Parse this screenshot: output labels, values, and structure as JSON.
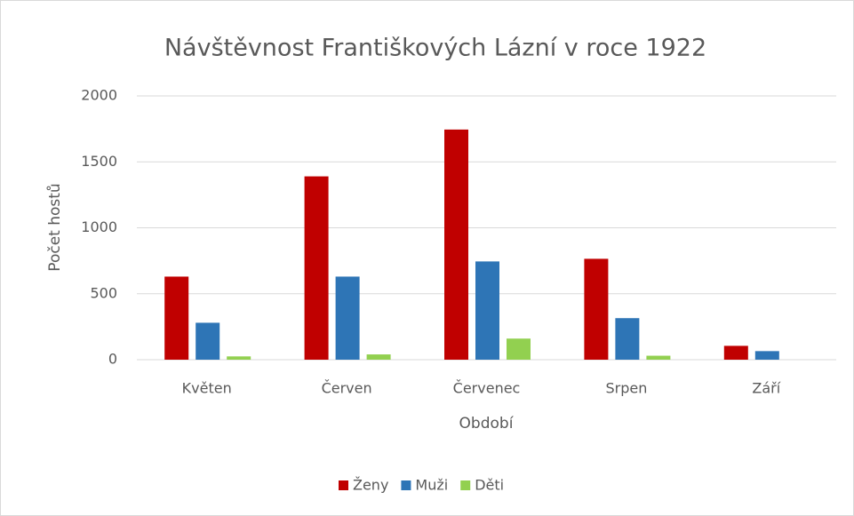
{
  "chart_data": {
    "type": "bar",
    "title": "Návštěvnost Františkových Lázní v roce 1922",
    "x_label": "Období",
    "y_label": "Počet hostů",
    "categories": [
      "Květen",
      "Červen",
      "Červenec",
      "Srpen",
      "Září"
    ],
    "series": [
      {
        "name": "Ženy",
        "color": "#c00000",
        "values": [
          630,
          1390,
          1745,
          765,
          105
        ]
      },
      {
        "name": "Muži",
        "color": "#2e75b6",
        "values": [
          280,
          630,
          745,
          315,
          65
        ]
      },
      {
        "name": "Děti",
        "color": "#92d050",
        "values": [
          25,
          40,
          160,
          30,
          0
        ]
      }
    ],
    "ylim": [
      0,
      2000
    ],
    "yticks": [
      0,
      500,
      1000,
      1500,
      2000
    ],
    "grid": true,
    "legend": "bottom"
  }
}
